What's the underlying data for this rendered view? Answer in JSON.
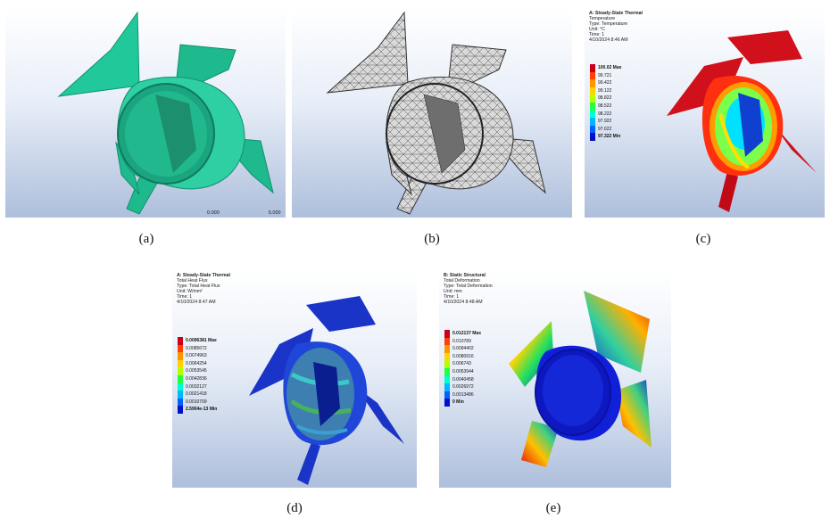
{
  "captions": {
    "a": "(a)",
    "b": "(b)",
    "c": "(c)",
    "d": "(d)",
    "e": "(e)"
  },
  "scale_bar": {
    "start": "0.000",
    "end": "5.000"
  },
  "panel_c": {
    "title": "A: Steady-State Thermal",
    "lines": [
      "Temperature",
      "Type: Temperature",
      "Unit: °C",
      "Time: 1",
      "4/10/2024 8:46 AM"
    ],
    "legend": [
      "100.02 Max",
      "99.721",
      "99.422",
      "99.122",
      "98.822",
      "98.522",
      "98.222",
      "97.922",
      "97.622",
      "97.322 Min"
    ]
  },
  "panel_d": {
    "title": "A: Steady-State Thermal",
    "lines": [
      "Total Heat Flux",
      "Type: Total Heat Flux",
      "Unit: W/mm²",
      "Time: 1",
      "4/10/2024 8:47 AM"
    ],
    "legend": [
      "0.0096381 Max",
      "0.0085672",
      "0.0074963",
      "0.0064254",
      "0.0053545",
      "0.0042836",
      "0.0032127",
      "0.0021418",
      "0.0010709",
      "2.5904e-13 Min"
    ]
  },
  "panel_e": {
    "title": "B: Static Structural",
    "lines": [
      "Total Deformation",
      "Type: Total Deformation",
      "Unit: mm",
      "Time: 1",
      "4/10/2024 8:48 AM"
    ],
    "legend": [
      "0.012137 Max",
      "0.010789",
      "0.0094402",
      "0.0080916",
      "0.006743",
      "0.0053944",
      "0.0040458",
      "0.0026972",
      "0.0013486",
      "0 Min"
    ]
  },
  "legend_colors": [
    "#c8001a",
    "#ff4000",
    "#ff9500",
    "#ffd400",
    "#b4ff00",
    "#22ff44",
    "#00ffd0",
    "#00b8ff",
    "#0060ff",
    "#0010c8"
  ]
}
